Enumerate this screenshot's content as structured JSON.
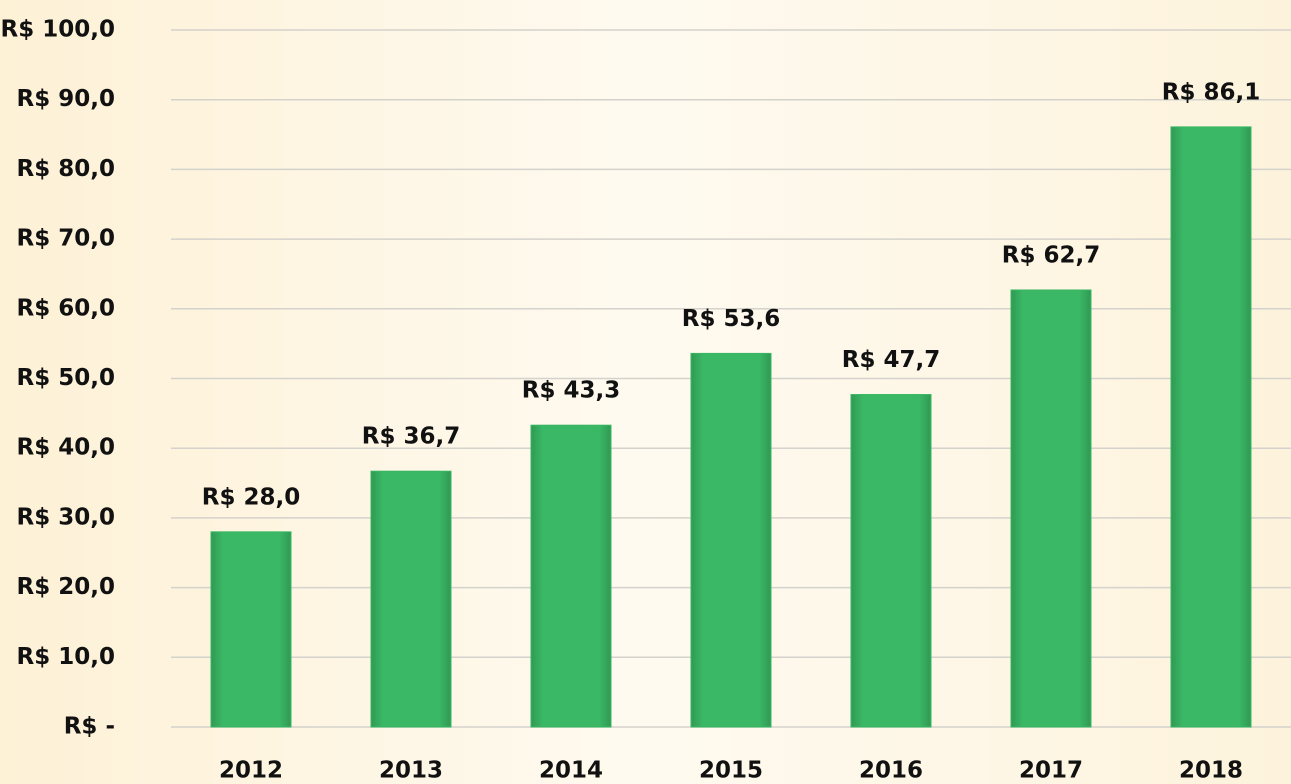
{
  "chart_data": {
    "type": "bar",
    "categories": [
      "2012",
      "2013",
      "2014",
      "2015",
      "2016",
      "2017",
      "2018"
    ],
    "values": [
      28.0,
      36.7,
      43.3,
      53.6,
      47.7,
      62.7,
      86.1
    ],
    "value_labels": [
      "R$ 28,0",
      "R$ 36,7",
      "R$ 43,3",
      "R$ 53,6",
      "R$ 47,7",
      "R$ 62,7",
      "R$ 86,1"
    ],
    "color": "#38b663",
    "ylim": [
      0,
      100
    ],
    "yticks": [
      {
        "value": 0,
        "label": "R$ -"
      },
      {
        "value": 10,
        "label": "R$ 10,0"
      },
      {
        "value": 20,
        "label": "R$ 20,0"
      },
      {
        "value": 30,
        "label": "R$ 30,0"
      },
      {
        "value": 40,
        "label": "R$ 40,0"
      },
      {
        "value": 50,
        "label": "R$ 50,0"
      },
      {
        "value": 60,
        "label": "R$ 60,0"
      },
      {
        "value": 70,
        "label": "R$ 70,0"
      },
      {
        "value": 80,
        "label": "R$ 80,0"
      },
      {
        "value": 90,
        "label": "R$ 90,0"
      },
      {
        "value": 100,
        "label": "R$ 100,0"
      }
    ],
    "grid": true
  }
}
